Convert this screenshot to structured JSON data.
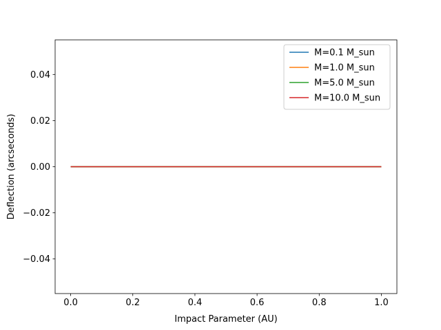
{
  "chart_data": {
    "type": "line",
    "title": "",
    "xlabel": "Impact Parameter (AU)",
    "ylabel": "Deflection (arcseconds)",
    "xlim": [
      -0.05,
      1.05
    ],
    "ylim": [
      -0.055,
      0.055
    ],
    "xticks": [
      0.0,
      0.2,
      0.4,
      0.6,
      0.8,
      1.0
    ],
    "xtick_labels": [
      "0.0",
      "0.2",
      "0.4",
      "0.6",
      "0.8",
      "1.0"
    ],
    "yticks": [
      0.04,
      0.02,
      0.0,
      -0.02,
      -0.04
    ],
    "ytick_labels": [
      "0.04",
      "0.02",
      "0.00",
      "−0.02",
      "−0.04"
    ],
    "grid": false,
    "legend_position": "top-right",
    "x": [
      0.0,
      0.25,
      0.5,
      0.75,
      1.0
    ],
    "series": [
      {
        "name": "M=0.1 M_sun",
        "color": "#1f77b4",
        "values": [
          0.0,
          0.0,
          0.0,
          0.0,
          0.0
        ]
      },
      {
        "name": "M=1.0 M_sun",
        "color": "#ff7f0e",
        "values": [
          0.0,
          0.0,
          0.0,
          0.0,
          0.0
        ]
      },
      {
        "name": "M=5.0 M_sun",
        "color": "#2ca02c",
        "values": [
          0.0,
          0.0,
          0.0,
          0.0,
          0.0
        ]
      },
      {
        "name": "M=10.0 M_sun",
        "color": "#d62728",
        "values": [
          0.0,
          0.0,
          0.0,
          0.0,
          0.0
        ]
      }
    ]
  }
}
